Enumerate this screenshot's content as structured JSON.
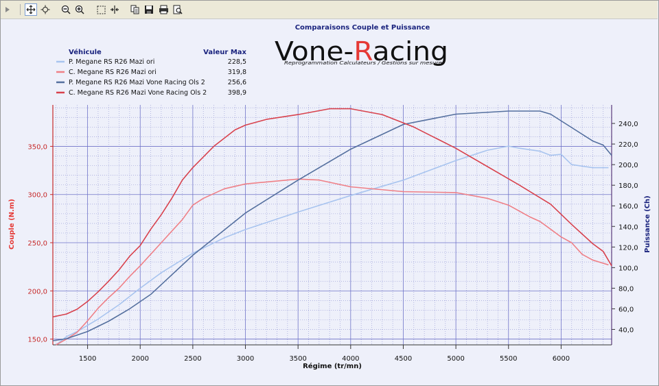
{
  "toolbar": {
    "icons": [
      "expand-arrow-icon",
      "pan-icon",
      "zoom-region-icon",
      "zoom-out-icon",
      "zoom-in-icon",
      "select-box-icon",
      "fit-width-icon",
      "copy-icon",
      "save-icon",
      "print-icon",
      "print-preview-icon"
    ]
  },
  "logo": {
    "brand_prefix": "Vone-",
    "brand_r": "R",
    "brand_suffix": "acing",
    "tagline": "Reprogrammation Calculateurs / Gestions sur mesure"
  },
  "colors": {
    "power_ori": "#a8c4ef",
    "torque_ori": "#ef7f86",
    "power_stage": "#546f9e",
    "torque_stage": "#d8414c",
    "grid": "#6f73c8",
    "plot_bg": "#eef0fa",
    "left_axis": "#c62828",
    "right_axis": "#1a237e"
  },
  "chart_data": {
    "type": "line",
    "title": "Comparaisons Couple et Puissance",
    "xlabel": "Régime (tr/mn)",
    "ylabel_left": "Couple (N.m)",
    "ylabel_right": "Puissance (Ch)",
    "xlim": [
      1170,
      6480
    ],
    "ylim_left": [
      144,
      393
    ],
    "ylim_right": [
      25,
      258
    ],
    "x_ticks": [
      "1500",
      "2000",
      "2500",
      "3000",
      "3500",
      "4000",
      "4500",
      "5000",
      "5500",
      "6000"
    ],
    "y_left_ticks": [
      "150,0",
      "200,0",
      "250,0",
      "300,0",
      "350,0"
    ],
    "y_right_ticks": [
      "40,0",
      "60,0",
      "80,0",
      "100,0",
      "120,0",
      "140,0",
      "160,0",
      "180,0",
      "200,0",
      "220,0",
      "240,0"
    ],
    "grid": true,
    "legend": {
      "col_vehicle": "Véhicule",
      "col_max": "Valeur Max",
      "entries": [
        {
          "name": "P. Megane RS R26 Mazi ori",
          "max": "228,5"
        },
        {
          "name": "C. Megane RS R26 Mazi ori",
          "max": "319,8"
        },
        {
          "name": "P. Megane RS R26 Mazi Vone Racing Ols 2",
          "max": "256,6"
        },
        {
          "name": "C. Megane RS R26 Mazi Vone Racing Ols 2",
          "max": "398,9"
        }
      ]
    },
    "series": [
      {
        "name": "P. Megane RS R26 Mazi ori",
        "axis": "right",
        "x": [
          1200,
          1300,
          1400,
          1500,
          1600,
          1700,
          1800,
          1900,
          2000,
          2200,
          2500,
          2800,
          3000,
          3500,
          4000,
          4500,
          5000,
          5300,
          5500,
          5600,
          5800,
          5900,
          6000,
          6100,
          6300,
          6450
        ],
        "y": [
          25,
          33,
          38,
          44,
          50,
          57,
          64,
          72,
          80,
          95,
          114,
          129,
          137,
          154,
          170,
          185,
          204,
          214,
          218,
          216,
          213,
          209,
          210,
          200,
          197,
          197
        ]
      },
      {
        "name": "C. Megane RS R26 Mazi ori",
        "axis": "left",
        "x": [
          1200,
          1300,
          1400,
          1500,
          1600,
          1700,
          1800,
          1900,
          2000,
          2200,
          2400,
          2500,
          2600,
          2800,
          3000,
          3200,
          3500,
          3700,
          4000,
          4500,
          5000,
          5300,
          5500,
          5700,
          5800,
          5900,
          6000,
          6100,
          6200,
          6300,
          6450
        ],
        "y": [
          144,
          150,
          157,
          169,
          182,
          193,
          203,
          215,
          226,
          250,
          274,
          289,
          296,
          306,
          311,
          313,
          316,
          315,
          308,
          303,
          302,
          296,
          289,
          277,
          272,
          264,
          256,
          250,
          238,
          232,
          227
        ]
      },
      {
        "name": "P. Megane RS R26 Mazi Vone Racing Ols 2",
        "axis": "right",
        "x": [
          1170,
          1300,
          1500,
          1700,
          1900,
          2100,
          2300,
          2500,
          3000,
          3500,
          4000,
          4500,
          5000,
          5500,
          5800,
          5900,
          6100,
          6300,
          6400,
          6480
        ],
        "y": [
          29,
          31,
          38,
          48,
          60,
          74,
          93,
          112,
          153,
          185,
          215,
          239,
          249,
          252,
          252,
          249,
          236,
          223,
          219,
          209
        ]
      },
      {
        "name": "C. Megane RS R26 Mazi Vone Racing Ols 2",
        "axis": "left",
        "x": [
          1170,
          1300,
          1400,
          1500,
          1600,
          1700,
          1800,
          1900,
          2000,
          2100,
          2200,
          2300,
          2400,
          2500,
          2700,
          2900,
          3000,
          3200,
          3500,
          3800,
          4000,
          4300,
          4600,
          5000,
          5300,
          5600,
          5900,
          6100,
          6300,
          6400,
          6480
        ],
        "y": [
          173,
          176,
          181,
          189,
          199,
          210,
          222,
          236,
          247,
          264,
          279,
          296,
          315,
          328,
          350,
          367,
          372,
          378,
          383,
          389,
          389,
          383,
          370,
          348,
          329,
          310,
          290,
          269,
          249,
          241,
          226
        ]
      }
    ]
  }
}
